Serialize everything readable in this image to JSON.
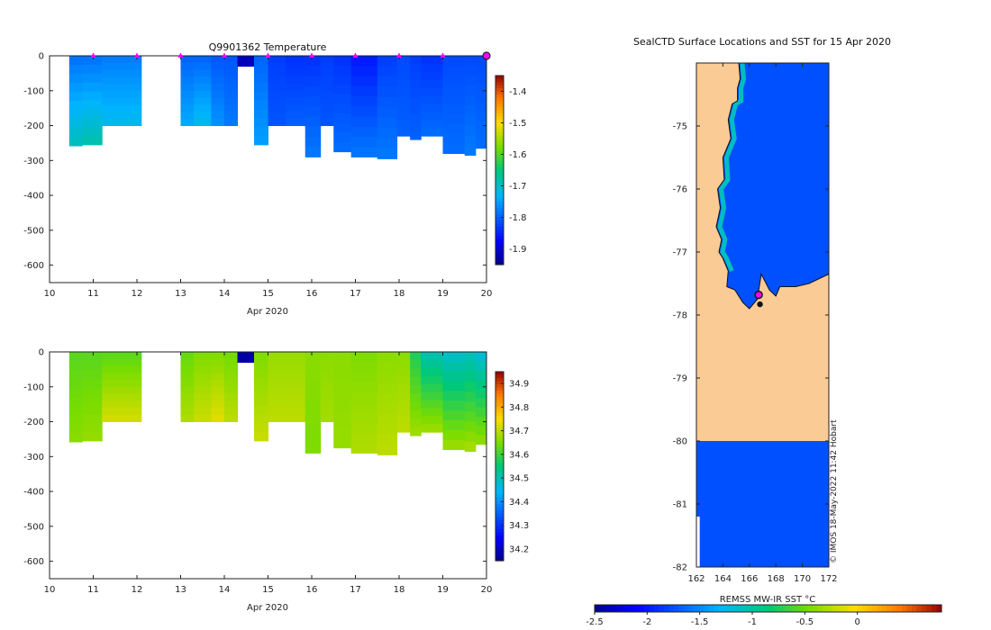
{
  "chart_data": [
    {
      "type": "heatmap",
      "title": "Q9901362  Temperature",
      "xlabel": "Apr 2020",
      "ylabel": "",
      "xlim": [
        10,
        20
      ],
      "ylim": [
        -650,
        0
      ],
      "xticks": [
        "10",
        "11",
        "12",
        "13",
        "14",
        "15",
        "16",
        "17",
        "18",
        "19",
        "20"
      ],
      "yticks": [
        "0",
        "-100",
        "-200",
        "-300",
        "-400",
        "-500",
        "-600"
      ],
      "colorbar": {
        "ticks": [
          "-1.4",
          "-1.5",
          "-1.6",
          "-1.7",
          "-1.8",
          "-1.9"
        ],
        "range": [
          -1.95,
          -1.35
        ]
      },
      "profile_markers_day": [
        11,
        12,
        13,
        14,
        15,
        16,
        17,
        18,
        19
      ],
      "current_marker_day": 20,
      "profiles": [
        {
          "x0": 10.45,
          "x1": 10.75,
          "depth": 258,
          "top": -1.79,
          "bottom": -1.69
        },
        {
          "x0": 10.75,
          "x1": 11.2,
          "depth": 255,
          "top": -1.79,
          "bottom": -1.68
        },
        {
          "x0": 11.2,
          "x1": 12.1,
          "depth": 200,
          "top": -1.78,
          "bottom": -1.72
        },
        {
          "x0": 13.0,
          "x1": 13.3,
          "depth": 200,
          "top": -1.8,
          "bottom": -1.74
        },
        {
          "x0": 13.3,
          "x1": 13.7,
          "depth": 200,
          "top": -1.8,
          "bottom": -1.72
        },
        {
          "x0": 13.7,
          "x1": 14.0,
          "depth": 200,
          "top": -1.81,
          "bottom": -1.76
        },
        {
          "x0": 14.0,
          "x1": 14.3,
          "depth": 200,
          "top": -1.81,
          "bottom": -1.78
        },
        {
          "x0": 14.3,
          "x1": 14.68,
          "depth": 30,
          "top": -1.92,
          "bottom": -1.92
        },
        {
          "x0": 14.68,
          "x1": 15.0,
          "depth": 255,
          "top": -1.8,
          "bottom": -1.75
        },
        {
          "x0": 15.0,
          "x1": 15.4,
          "depth": 200,
          "top": -1.83,
          "bottom": -1.81
        },
        {
          "x0": 15.4,
          "x1": 15.85,
          "depth": 200,
          "top": -1.84,
          "bottom": -1.8
        },
        {
          "x0": 15.85,
          "x1": 16.2,
          "depth": 290,
          "top": -1.84,
          "bottom": -1.78
        },
        {
          "x0": 16.2,
          "x1": 16.5,
          "depth": 200,
          "top": -1.83,
          "bottom": -1.81
        },
        {
          "x0": 16.5,
          "x1": 16.9,
          "depth": 275,
          "top": -1.84,
          "bottom": -1.79
        },
        {
          "x0": 16.9,
          "x1": 17.5,
          "depth": 290,
          "top": -1.86,
          "bottom": -1.78
        },
        {
          "x0": 17.5,
          "x1": 17.95,
          "depth": 295,
          "top": -1.83,
          "bottom": -1.78
        },
        {
          "x0": 17.95,
          "x1": 18.25,
          "depth": 230,
          "top": -1.82,
          "bottom": -1.8
        },
        {
          "x0": 18.25,
          "x1": 18.5,
          "depth": 240,
          "top": -1.83,
          "bottom": -1.8
        },
        {
          "x0": 18.5,
          "x1": 19.0,
          "depth": 230,
          "top": -1.84,
          "bottom": -1.79
        },
        {
          "x0": 19.0,
          "x1": 19.5,
          "depth": 280,
          "top": -1.82,
          "bottom": -1.79
        },
        {
          "x0": 19.5,
          "x1": 19.75,
          "depth": 285,
          "top": -1.82,
          "bottom": -1.78
        },
        {
          "x0": 19.75,
          "x1": 20.0,
          "depth": 265,
          "top": -1.82,
          "bottom": -1.79
        }
      ]
    },
    {
      "type": "heatmap",
      "title": "",
      "xlabel": "Apr 2020",
      "ylabel": "",
      "xlim": [
        10,
        20
      ],
      "ylim": [
        -650,
        0
      ],
      "xticks": [
        "10",
        "11",
        "12",
        "13",
        "14",
        "15",
        "16",
        "17",
        "18",
        "19",
        "20"
      ],
      "yticks": [
        "0",
        "-100",
        "-200",
        "-300",
        "-400",
        "-500",
        "-600"
      ],
      "colorbar": {
        "ticks": [
          "34.9",
          "34.8",
          "34.7",
          "34.6",
          "34.5",
          "34.4",
          "34.3",
          "34.2"
        ],
        "range": [
          34.15,
          34.95
        ]
      },
      "profiles": [
        {
          "x0": 10.45,
          "x1": 10.75,
          "depth": 258,
          "top": 34.62,
          "bottom": 34.66
        },
        {
          "x0": 10.75,
          "x1": 11.2,
          "depth": 255,
          "top": 34.62,
          "bottom": 34.67
        },
        {
          "x0": 11.2,
          "x1": 12.1,
          "depth": 200,
          "top": 34.62,
          "bottom": 34.72
        },
        {
          "x0": 13.0,
          "x1": 13.3,
          "depth": 200,
          "top": 34.63,
          "bottom": 34.69
        },
        {
          "x0": 13.3,
          "x1": 13.7,
          "depth": 200,
          "top": 34.65,
          "bottom": 34.71
        },
        {
          "x0": 13.7,
          "x1": 14.0,
          "depth": 200,
          "top": 34.65,
          "bottom": 34.73
        },
        {
          "x0": 14.0,
          "x1": 14.3,
          "depth": 200,
          "top": 34.64,
          "bottom": 34.7
        },
        {
          "x0": 14.3,
          "x1": 14.68,
          "depth": 30,
          "top": 34.17,
          "bottom": 34.17
        },
        {
          "x0": 14.68,
          "x1": 15.0,
          "depth": 255,
          "top": 34.65,
          "bottom": 34.71
        },
        {
          "x0": 15.0,
          "x1": 15.4,
          "depth": 200,
          "top": 34.67,
          "bottom": 34.7
        },
        {
          "x0": 15.4,
          "x1": 15.85,
          "depth": 200,
          "top": 34.67,
          "bottom": 34.7
        },
        {
          "x0": 15.85,
          "x1": 16.2,
          "depth": 290,
          "top": 34.66,
          "bottom": 34.65
        },
        {
          "x0": 16.2,
          "x1": 16.5,
          "depth": 200,
          "top": 34.66,
          "bottom": 34.68
        },
        {
          "x0": 16.5,
          "x1": 16.9,
          "depth": 275,
          "top": 34.66,
          "bottom": 34.67
        },
        {
          "x0": 16.9,
          "x1": 17.5,
          "depth": 290,
          "top": 34.65,
          "bottom": 34.69
        },
        {
          "x0": 17.5,
          "x1": 17.95,
          "depth": 295,
          "top": 34.66,
          "bottom": 34.7
        },
        {
          "x0": 17.95,
          "x1": 18.25,
          "depth": 230,
          "top": 34.66,
          "bottom": 34.7
        },
        {
          "x0": 18.25,
          "x1": 18.5,
          "depth": 240,
          "top": 34.57,
          "bottom": 34.68
        },
        {
          "x0": 18.5,
          "x1": 19.0,
          "depth": 230,
          "top": 34.5,
          "bottom": 34.68
        },
        {
          "x0": 19.0,
          "x1": 19.5,
          "depth": 280,
          "top": 34.48,
          "bottom": 34.68
        },
        {
          "x0": 19.5,
          "x1": 19.75,
          "depth": 285,
          "top": 34.49,
          "bottom": 34.69
        },
        {
          "x0": 19.75,
          "x1": 20.0,
          "depth": 265,
          "top": 34.47,
          "bottom": 34.67
        }
      ]
    },
    {
      "type": "map",
      "title": "SealCTD Surface Locations and SST for 15 Apr 2020",
      "xlim": [
        162,
        172
      ],
      "ylim": [
        -82,
        -74
      ],
      "xticks": [
        "162",
        "164",
        "166",
        "168",
        "170",
        "172"
      ],
      "yticks": [
        "-75",
        "-76",
        "-77",
        "-78",
        "-79",
        "-80",
        "-81",
        "-82"
      ],
      "colorbar": {
        "label": "REMSS MW-IR SST °C",
        "ticks": [
          "-2.5",
          "-2",
          "-1.5",
          "-1",
          "-0.5",
          "0"
        ],
        "range": [
          -2.5,
          0.8
        ]
      },
      "ocean_sst": -1.75,
      "coastline": [
        [
          165.2,
          -74.0
        ],
        [
          165.3,
          -74.25
        ],
        [
          165.1,
          -74.4
        ],
        [
          165.1,
          -74.6
        ],
        [
          164.7,
          -74.65
        ],
        [
          164.4,
          -74.9
        ],
        [
          164.6,
          -75.2
        ],
        [
          164.0,
          -75.5
        ],
        [
          164.1,
          -75.85
        ],
        [
          163.6,
          -76.0
        ],
        [
          163.8,
          -76.3
        ],
        [
          163.5,
          -76.6
        ],
        [
          163.9,
          -76.8
        ],
        [
          163.7,
          -77.0
        ],
        [
          164.0,
          -77.1
        ],
        [
          164.4,
          -77.3
        ],
        [
          164.3,
          -77.55
        ],
        [
          164.9,
          -77.6
        ],
        [
          165.5,
          -77.8
        ],
        [
          166.0,
          -77.9
        ],
        [
          166.6,
          -77.75
        ],
        [
          166.9,
          -77.35
        ],
        [
          167.5,
          -77.6
        ],
        [
          168.0,
          -77.7
        ],
        [
          168.3,
          -77.55
        ],
        [
          169.5,
          -77.55
        ],
        [
          170.5,
          -77.5
        ],
        [
          171.5,
          -77.4
        ],
        [
          172.0,
          -77.35
        ]
      ],
      "seal_locations": [
        {
          "lon": 166.7,
          "lat": -77.68,
          "current": true
        },
        {
          "lon": 166.8,
          "lat": -77.83,
          "current": false
        }
      ],
      "side_note": "© IMOS 18-May-2022 11:42 Hobart"
    }
  ],
  "colors": {
    "land": "#fbcb96",
    "ocean": "#00aaee",
    "marker": "#ff00ff",
    "frame": "#222222"
  }
}
